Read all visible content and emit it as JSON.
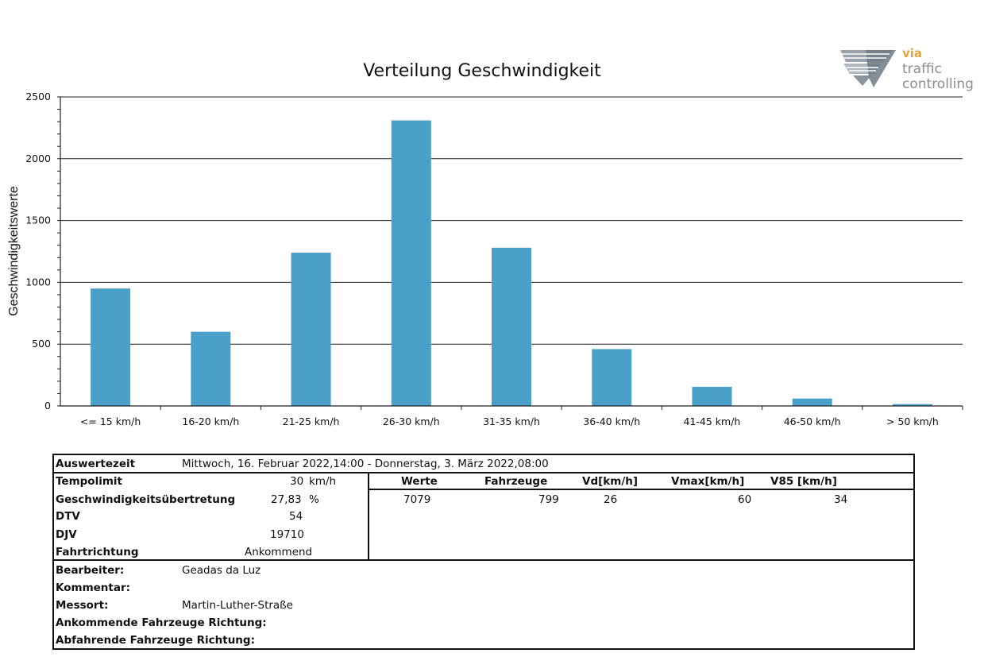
{
  "logo": {
    "via": "via",
    "line1": "traffic",
    "line2": "controlling"
  },
  "chart_data": {
    "type": "bar",
    "title": "Verteilung Geschwindigkeit",
    "ylabel": "Geschwindigkeitswerte",
    "xlabel": "",
    "ylim": [
      0,
      2500
    ],
    "yticks": [
      "0",
      "500",
      "1000",
      "1500",
      "2000",
      "2500"
    ],
    "grid": true,
    "bar_color": "#4aa0c8",
    "categories": [
      "<= 15 km/h",
      "16-20 km/h",
      "21-25 km/h",
      "26-30 km/h",
      "31-35 km/h",
      "36-40 km/h",
      "41-45 km/h",
      "46-50 km/h",
      "> 50 km/h"
    ],
    "values": [
      950,
      600,
      1240,
      2310,
      1280,
      460,
      155,
      60,
      15
    ]
  },
  "info": {
    "auswertezeit_label": "Auswertezeit",
    "auswertezeit_value": "Mittwoch, 16. Februar 2022,14:00  -  Donnerstag, 3. März 2022,08:00",
    "tempolimit_label": "Tempolimit",
    "tempolimit_value": "30",
    "tempolimit_unit": "km/h",
    "uebertretung_label": "Geschwindigkeitsübertretung",
    "uebertretung_value": "27,83",
    "uebertretung_unit": "%",
    "dtv_label": "DTV",
    "dtv_value": "54",
    "djv_label": "DJV",
    "djv_value": "19710",
    "fahrtrichtung_label": "Fahrtrichtung",
    "fahrtrichtung_value": "Ankommend",
    "stats_headers": [
      "Werte",
      "Fahrzeuge",
      "Vd[km/h]",
      "Vmax[km/h]",
      "V85 [km/h]"
    ],
    "stats_values": [
      "7079",
      "799",
      "26",
      "60",
      "34"
    ],
    "bearbeiter_label": "Bearbeiter:",
    "bearbeiter_value": "Geadas da Luz",
    "kommentar_label": "Kommentar:",
    "messort_label": "Messort:",
    "messort_value": "Martin-Luther-Straße",
    "ankommende_label": "Ankommende Fahrzeuge Richtung:",
    "abfahrende_label": "Abfahrende Fahrzeuge Richtung:"
  }
}
